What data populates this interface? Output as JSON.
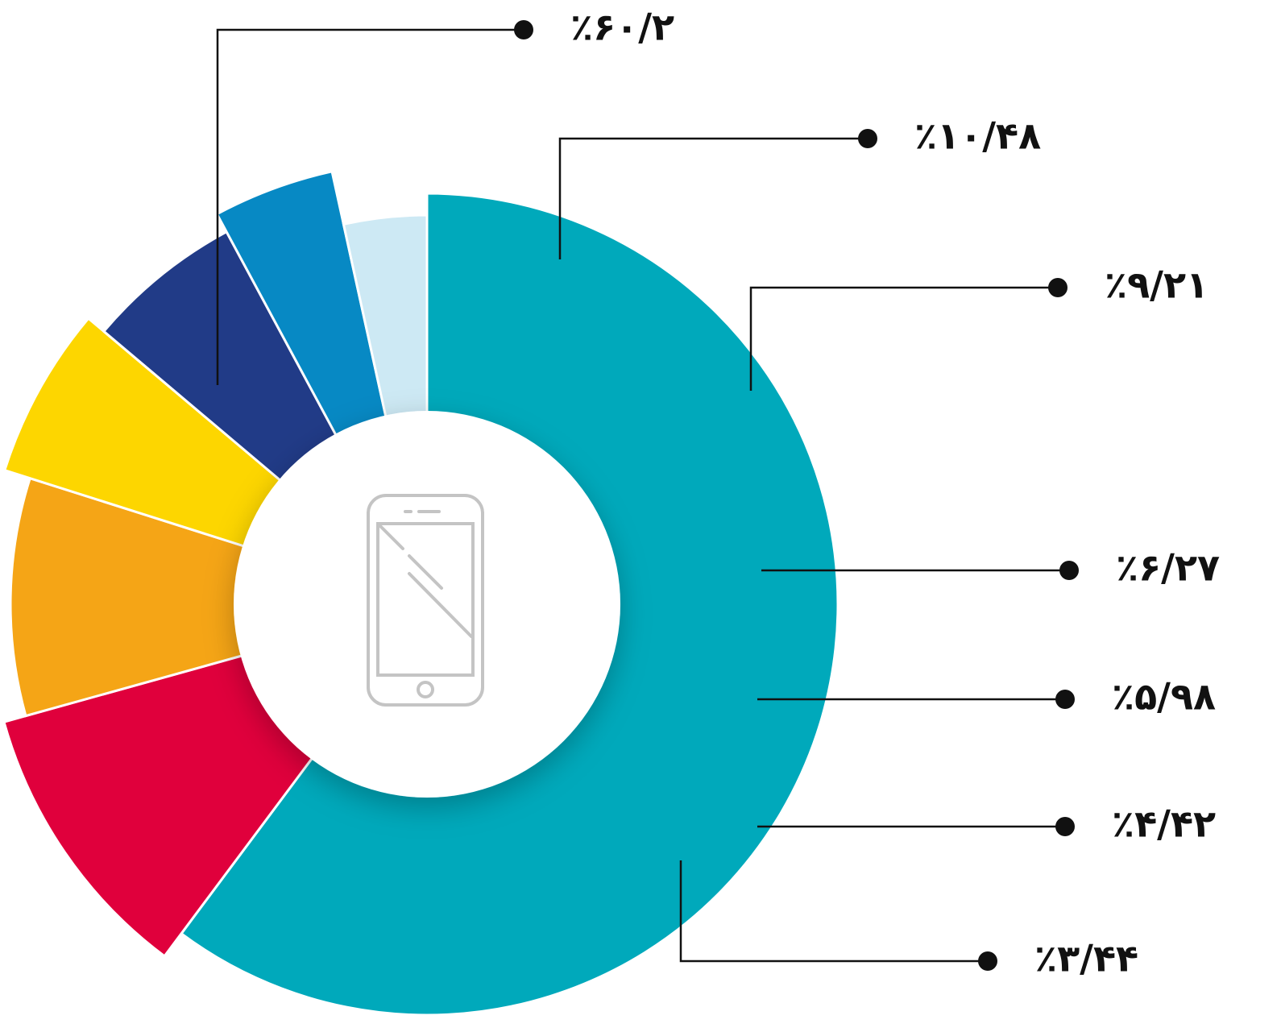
{
  "chart_data": {
    "type": "pie",
    "values": [
      60.2,
      10.48,
      9.21,
      6.27,
      5.98,
      4.42,
      3.44
    ],
    "value_labels": [
      "٪۶۰/۲",
      "٪۱۰/۴۸",
      "٪۹/۲۱",
      "٪۶/۲۷",
      "٪۵/۹۸",
      "٪۴/۴۲",
      "٪۳/۴۴"
    ],
    "colors": [
      "#00a9bb",
      "#e0003c",
      "#f5a516",
      "#fdd600",
      "#213b87",
      "#0789c4",
      "#cde9f4"
    ]
  }
}
